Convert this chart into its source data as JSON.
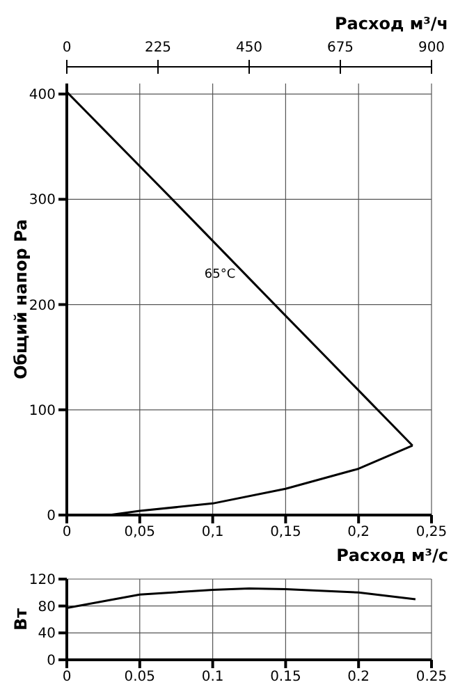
{
  "chart_data": [
    {
      "type": "line",
      "xlabel": "Расход м³/с",
      "ylabel": "Общий напор Pa",
      "x2label": "Расход м³/ч",
      "xlim": [
        0,
        0.25
      ],
      "xticks": [
        0,
        {
          "value": 0.05,
          "label": "0,05"
        },
        {
          "value": 0.1,
          "label": "0,1"
        },
        {
          "value": 0.15,
          "label": "0,15"
        },
        {
          "value": 0.2,
          "label": "0,2"
        },
        {
          "value": 0.25,
          "label": "0,25"
        }
      ],
      "x2lim": [
        0,
        900
      ],
      "x2ticks": [
        0,
        225,
        450,
        675,
        900
      ],
      "ylim": [
        0,
        410
      ],
      "yticks": [
        0,
        100,
        200,
        300,
        400
      ],
      "grid": true,
      "line_style": "solid",
      "series": [
        {
          "color": "#000000",
          "x": [
            0,
            0.073,
            0.146,
            0.237
          ],
          "values": [
            402,
            299,
            195,
            66
          ]
        },
        {
          "color": "#000000",
          "x": [
            0.029,
            0.05,
            0.1,
            0.15,
            0.2,
            0.237
          ],
          "values": [
            0,
            4,
            11,
            25,
            44,
            66
          ]
        }
      ],
      "annotations": [
        "65°C"
      ]
    },
    {
      "type": "line",
      "ylabel": "Вт",
      "xlim": [
        0,
        0.25
      ],
      "xticks": [
        0,
        0.05,
        0.1,
        0.15,
        0.2,
        0.25
      ],
      "ylim": [
        0,
        120
      ],
      "yticks": [
        0,
        40,
        80,
        120
      ],
      "grid": true,
      "line_style": "solid",
      "series": [
        {
          "color": "#000000",
          "x": [
            0,
            0.05,
            0.1,
            0.125,
            0.15,
            0.2,
            0.239
          ],
          "values": [
            77,
            97,
            104,
            106,
            105,
            100,
            90
          ]
        }
      ]
    }
  ]
}
